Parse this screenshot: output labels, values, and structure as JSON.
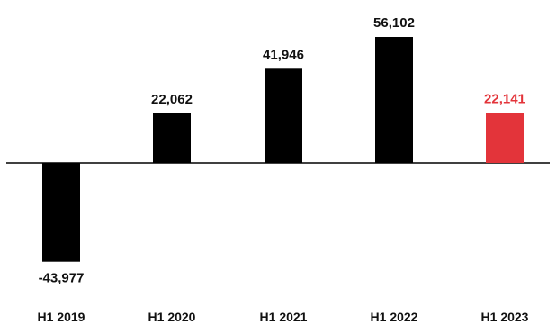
{
  "chart_data": {
    "type": "bar",
    "title": "",
    "xlabel": "",
    "ylabel": "",
    "categories": [
      "H1 2019",
      "H1 2020",
      "H1 2021",
      "H1 2022",
      "H1 2023"
    ],
    "values": [
      -43977,
      22062,
      41946,
      56102,
      22141
    ],
    "value_labels": [
      "-43,977",
      "22,062",
      "41,946",
      "56,102",
      "22,141"
    ],
    "bar_colors": [
      "#000000",
      "#000000",
      "#000000",
      "#000000",
      "#e3343a"
    ],
    "label_colors": [
      "#111111",
      "#111111",
      "#111111",
      "#111111",
      "#e3343a"
    ],
    "ylim": [
      -43977,
      56102
    ],
    "grid": false,
    "legend": "none",
    "zero_line": true
  }
}
